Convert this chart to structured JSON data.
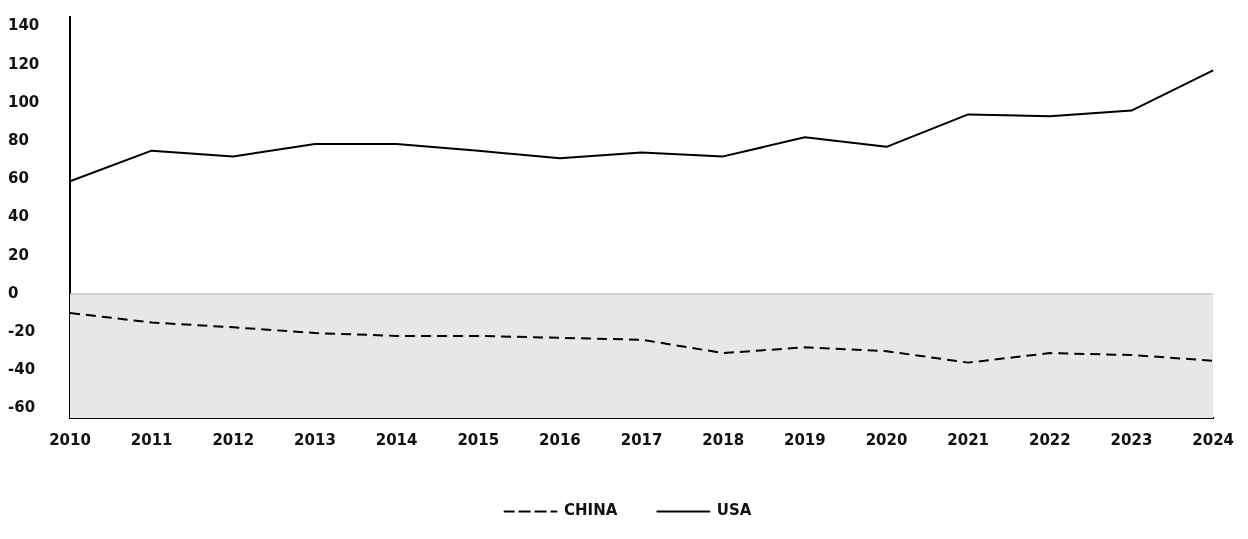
{
  "chart_data": {
    "type": "line",
    "categories": [
      "2010",
      "2011",
      "2012",
      "2013",
      "2014",
      "2015",
      "2016",
      "2017",
      "2018",
      "2019",
      "2020",
      "2021",
      "2022",
      "2023",
      "2024"
    ],
    "series": [
      {
        "name": "CHINA",
        "color": "#000000",
        "line_style": "dashed",
        "values": [
          -10,
          -15,
          -17.5,
          -20.5,
          -22,
          -22,
          -23,
          -24,
          -31,
          -28,
          -30,
          -36,
          -31,
          -32,
          -35
        ]
      },
      {
        "name": "USA",
        "color": "#000000",
        "line_style": "solid",
        "values": [
          59,
          75,
          72,
          78.5,
          78.5,
          75,
          71,
          74,
          72,
          82,
          77,
          94,
          93,
          96,
          117
        ]
      }
    ],
    "ylim": [
      -65,
      145
    ],
    "yticks": [
      -60,
      -40,
      -20,
      0,
      20,
      40,
      60,
      80,
      100,
      120,
      140
    ],
    "bands": [
      {
        "axis": "y",
        "from": -65,
        "to": 0,
        "color": "#e6e7e9"
      }
    ],
    "ref_lines": [
      {
        "axis": "y",
        "value": 0,
        "color": "#b5b5b5"
      }
    ],
    "grid": false,
    "legend": "bottom",
    "marker": "none"
  }
}
